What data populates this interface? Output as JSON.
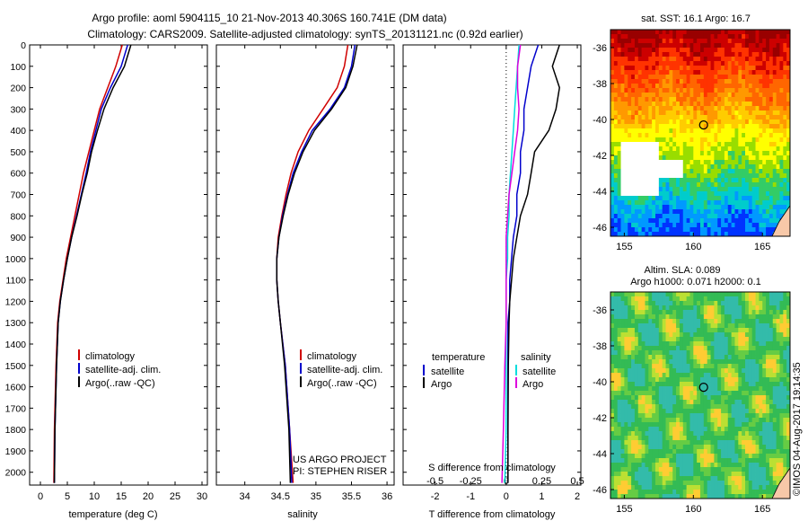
{
  "header": {
    "title_line1": "Argo profile: aoml 5904115_10 21-Nov-2013 40.306S 160.741E (DM data)",
    "title_line2": "Climatology: CARS2009. Satellite-adjusted climatology: synTS_20131121.nc (0.92d earlier)"
  },
  "chart_data": [
    {
      "type": "line",
      "xlabel": "temperature (deg C)",
      "xlim": [
        -2,
        31
      ],
      "xticks": [
        0,
        5,
        10,
        15,
        20,
        25,
        30
      ],
      "ylim": [
        2060,
        0
      ],
      "yticks": [
        0,
        100,
        200,
        300,
        400,
        500,
        600,
        700,
        800,
        900,
        1000,
        1100,
        1200,
        1300,
        1400,
        1500,
        1600,
        1700,
        1800,
        1900,
        2000
      ],
      "legend": [
        "climatology",
        "satellite-adj. clim.",
        "Argo(..raw -QC)"
      ],
      "legend_colors": [
        "#d00000",
        "#0000cc",
        "#000000"
      ],
      "series": [
        {
          "name": "climatology",
          "color": "#d00000",
          "x": [
            15.2,
            14.0,
            12.5,
            11.0,
            10.0,
            9.0,
            8.0,
            7.2,
            6.4,
            5.6,
            4.8,
            4.2,
            3.6,
            3.2,
            2.9,
            2.6,
            2.5
          ],
          "y": [
            0,
            100,
            200,
            300,
            400,
            500,
            600,
            700,
            800,
            900,
            1000,
            1100,
            1200,
            1300,
            1500,
            1800,
            2050
          ]
        },
        {
          "name": "satellite-adj. clim.",
          "color": "#0000cc",
          "x": [
            16.2,
            15.0,
            13.0,
            11.3,
            10.3,
            9.3,
            8.5,
            7.6,
            6.7,
            5.8,
            5.0,
            4.3,
            3.7,
            3.3,
            3.0,
            2.7,
            2.6
          ],
          "y": [
            0,
            100,
            200,
            300,
            400,
            500,
            600,
            700,
            800,
            900,
            1000,
            1100,
            1200,
            1300,
            1500,
            1800,
            2050
          ]
        },
        {
          "name": "Argo(..raw -QC)",
          "color": "#000000",
          "x": [
            16.8,
            15.6,
            13.5,
            11.8,
            10.6,
            9.5,
            8.7,
            7.7,
            6.8,
            5.8,
            5.0,
            4.3,
            3.7,
            3.3,
            3.0,
            2.7,
            2.6
          ],
          "y": [
            0,
            100,
            200,
            300,
            400,
            500,
            600,
            700,
            800,
            900,
            1000,
            1100,
            1200,
            1300,
            1500,
            1800,
            2050
          ]
        }
      ]
    },
    {
      "type": "line",
      "xlabel": "salinity",
      "xlim": [
        33.6,
        36.1
      ],
      "xticks": [
        34,
        34.5,
        35,
        35.5,
        36
      ],
      "ylim": [
        2060,
        0
      ],
      "legend": [
        "climatology",
        "satellite-adj. clim.",
        "Argo(..raw -QC)"
      ],
      "legend_colors": [
        "#d00000",
        "#0000cc",
        "#000000"
      ],
      "credit_line1": "US ARGO PROJECT",
      "credit_line2": "PI: STEPHEN RISER",
      "series": [
        {
          "name": "climatology",
          "color": "#d00000",
          "x": [
            35.45,
            35.4,
            35.3,
            35.1,
            34.9,
            34.75,
            34.65,
            34.58,
            34.52,
            34.47,
            34.45,
            34.45,
            34.47,
            34.5,
            34.57,
            34.63,
            34.68
          ],
          "y": [
            0,
            100,
            200,
            300,
            400,
            500,
            600,
            700,
            800,
            900,
            1000,
            1100,
            1200,
            1300,
            1500,
            1800,
            2050
          ]
        },
        {
          "name": "satellite-adj. clim.",
          "color": "#0000cc",
          "x": [
            35.55,
            35.5,
            35.4,
            35.2,
            34.95,
            34.8,
            34.68,
            34.6,
            34.53,
            34.48,
            34.45,
            34.45,
            34.47,
            34.5,
            34.57,
            34.63,
            34.66
          ],
          "y": [
            0,
            100,
            200,
            300,
            400,
            500,
            600,
            700,
            800,
            900,
            1000,
            1100,
            1200,
            1300,
            1500,
            1800,
            2050
          ]
        },
        {
          "name": "Argo(..raw -QC)",
          "color": "#000000",
          "x": [
            35.58,
            35.52,
            35.42,
            35.22,
            34.98,
            34.82,
            34.7,
            34.61,
            34.54,
            34.48,
            34.45,
            34.45,
            34.47,
            34.5,
            34.56,
            34.62,
            34.64
          ],
          "y": [
            0,
            100,
            200,
            300,
            400,
            500,
            600,
            700,
            800,
            900,
            1000,
            1100,
            1200,
            1300,
            1500,
            1800,
            2050
          ]
        }
      ]
    },
    {
      "type": "line",
      "xlabel_top": "S difference from climatology",
      "xlabel": "T difference from climatology",
      "xlim": [
        -2.9,
        2.1
      ],
      "xticks": [
        -2,
        -1,
        0,
        1,
        2
      ],
      "s_ticks": [
        -0.5,
        -0.25,
        0,
        0.25,
        0.5
      ],
      "s_tick_labels": [
        "-0.5",
        "-0.25",
        "0",
        "0.25",
        "0.5"
      ],
      "s_scale": 4,
      "ylim": [
        2060,
        0
      ],
      "legend_temperature_title": "temperature",
      "legend_salinity_title": "salinity",
      "legend_temperature": [
        "satellite",
        "Argo"
      ],
      "legend_salinity": [
        "satellite",
        "Argo"
      ],
      "series": [
        {
          "name": "satellite",
          "kind": "temperature",
          "color": "#0000cc",
          "x": [
            0.9,
            0.7,
            0.6,
            0.5,
            0.5,
            0.4,
            0.4,
            0.3,
            0.3,
            0.2,
            0.15,
            0.1,
            0.1,
            0.05,
            0.05,
            0.05,
            0.05
          ],
          "y": [
            0,
            100,
            200,
            300,
            400,
            500,
            600,
            700,
            800,
            900,
            1000,
            1100,
            1200,
            1300,
            1500,
            1800,
            2050
          ]
        },
        {
          "name": "Argo",
          "kind": "temperature",
          "color": "#000000",
          "x": [
            1.5,
            1.3,
            1.5,
            1.4,
            1.2,
            0.8,
            0.7,
            0.6,
            0.4,
            0.3,
            0.2,
            0.15,
            0.1,
            0.08,
            0.06,
            0.05,
            0.05
          ],
          "y": [
            0,
            100,
            200,
            300,
            400,
            500,
            600,
            700,
            800,
            900,
            1000,
            1100,
            1200,
            1300,
            1500,
            1800,
            2050
          ]
        },
        {
          "name": "satellite",
          "kind": "salinity",
          "color": "#00dddd",
          "x": [
            0.09,
            0.08,
            0.07,
            0.06,
            0.05,
            0.04,
            0.03,
            0.02,
            0.02,
            0.01,
            0.01,
            0.0,
            0.0,
            0.0,
            0.0,
            0.0,
            -0.01
          ],
          "y": [
            0,
            100,
            200,
            300,
            400,
            500,
            600,
            700,
            800,
            900,
            1000,
            1100,
            1200,
            1300,
            1500,
            1800,
            2050
          ]
        },
        {
          "name": "Argo",
          "kind": "salinity",
          "color": "#dd00dd",
          "x": [
            0.1,
            0.08,
            0.08,
            0.09,
            0.08,
            0.06,
            0.04,
            0.02,
            0.01,
            0.0,
            0.0,
            0.0,
            0.0,
            0.0,
            -0.01,
            -0.02,
            -0.03
          ],
          "y": [
            0,
            100,
            200,
            300,
            400,
            500,
            600,
            700,
            800,
            900,
            1000,
            1100,
            1200,
            1300,
            1500,
            1800,
            2050
          ]
        }
      ]
    },
    {
      "type": "heatmap",
      "title": "sat. SST: 16.1  Argo: 16.7",
      "xlim": [
        154,
        167
      ],
      "ylim": [
        -46.5,
        -35
      ],
      "xticks": [
        155,
        160,
        165
      ],
      "yticks": [
        -36,
        -38,
        -40,
        -42,
        -44,
        -46
      ],
      "marker": {
        "lon": 160.741,
        "lat": -40.306
      }
    },
    {
      "type": "heatmap",
      "title_line1": "Altim. SLA: 0.089",
      "title_line2": "Argo h1000: 0.071 h2000: 0.1",
      "xlim": [
        154,
        167
      ],
      "ylim": [
        -46.5,
        -35
      ],
      "xticks": [
        155,
        160,
        165
      ],
      "yticks": [
        -36,
        -38,
        -40,
        -42,
        -44,
        -46
      ],
      "marker": {
        "lon": 160.741,
        "lat": -40.306
      }
    }
  ],
  "footer": {
    "stamp": "©IMOS 04-Aug-2017 19:14:35"
  }
}
